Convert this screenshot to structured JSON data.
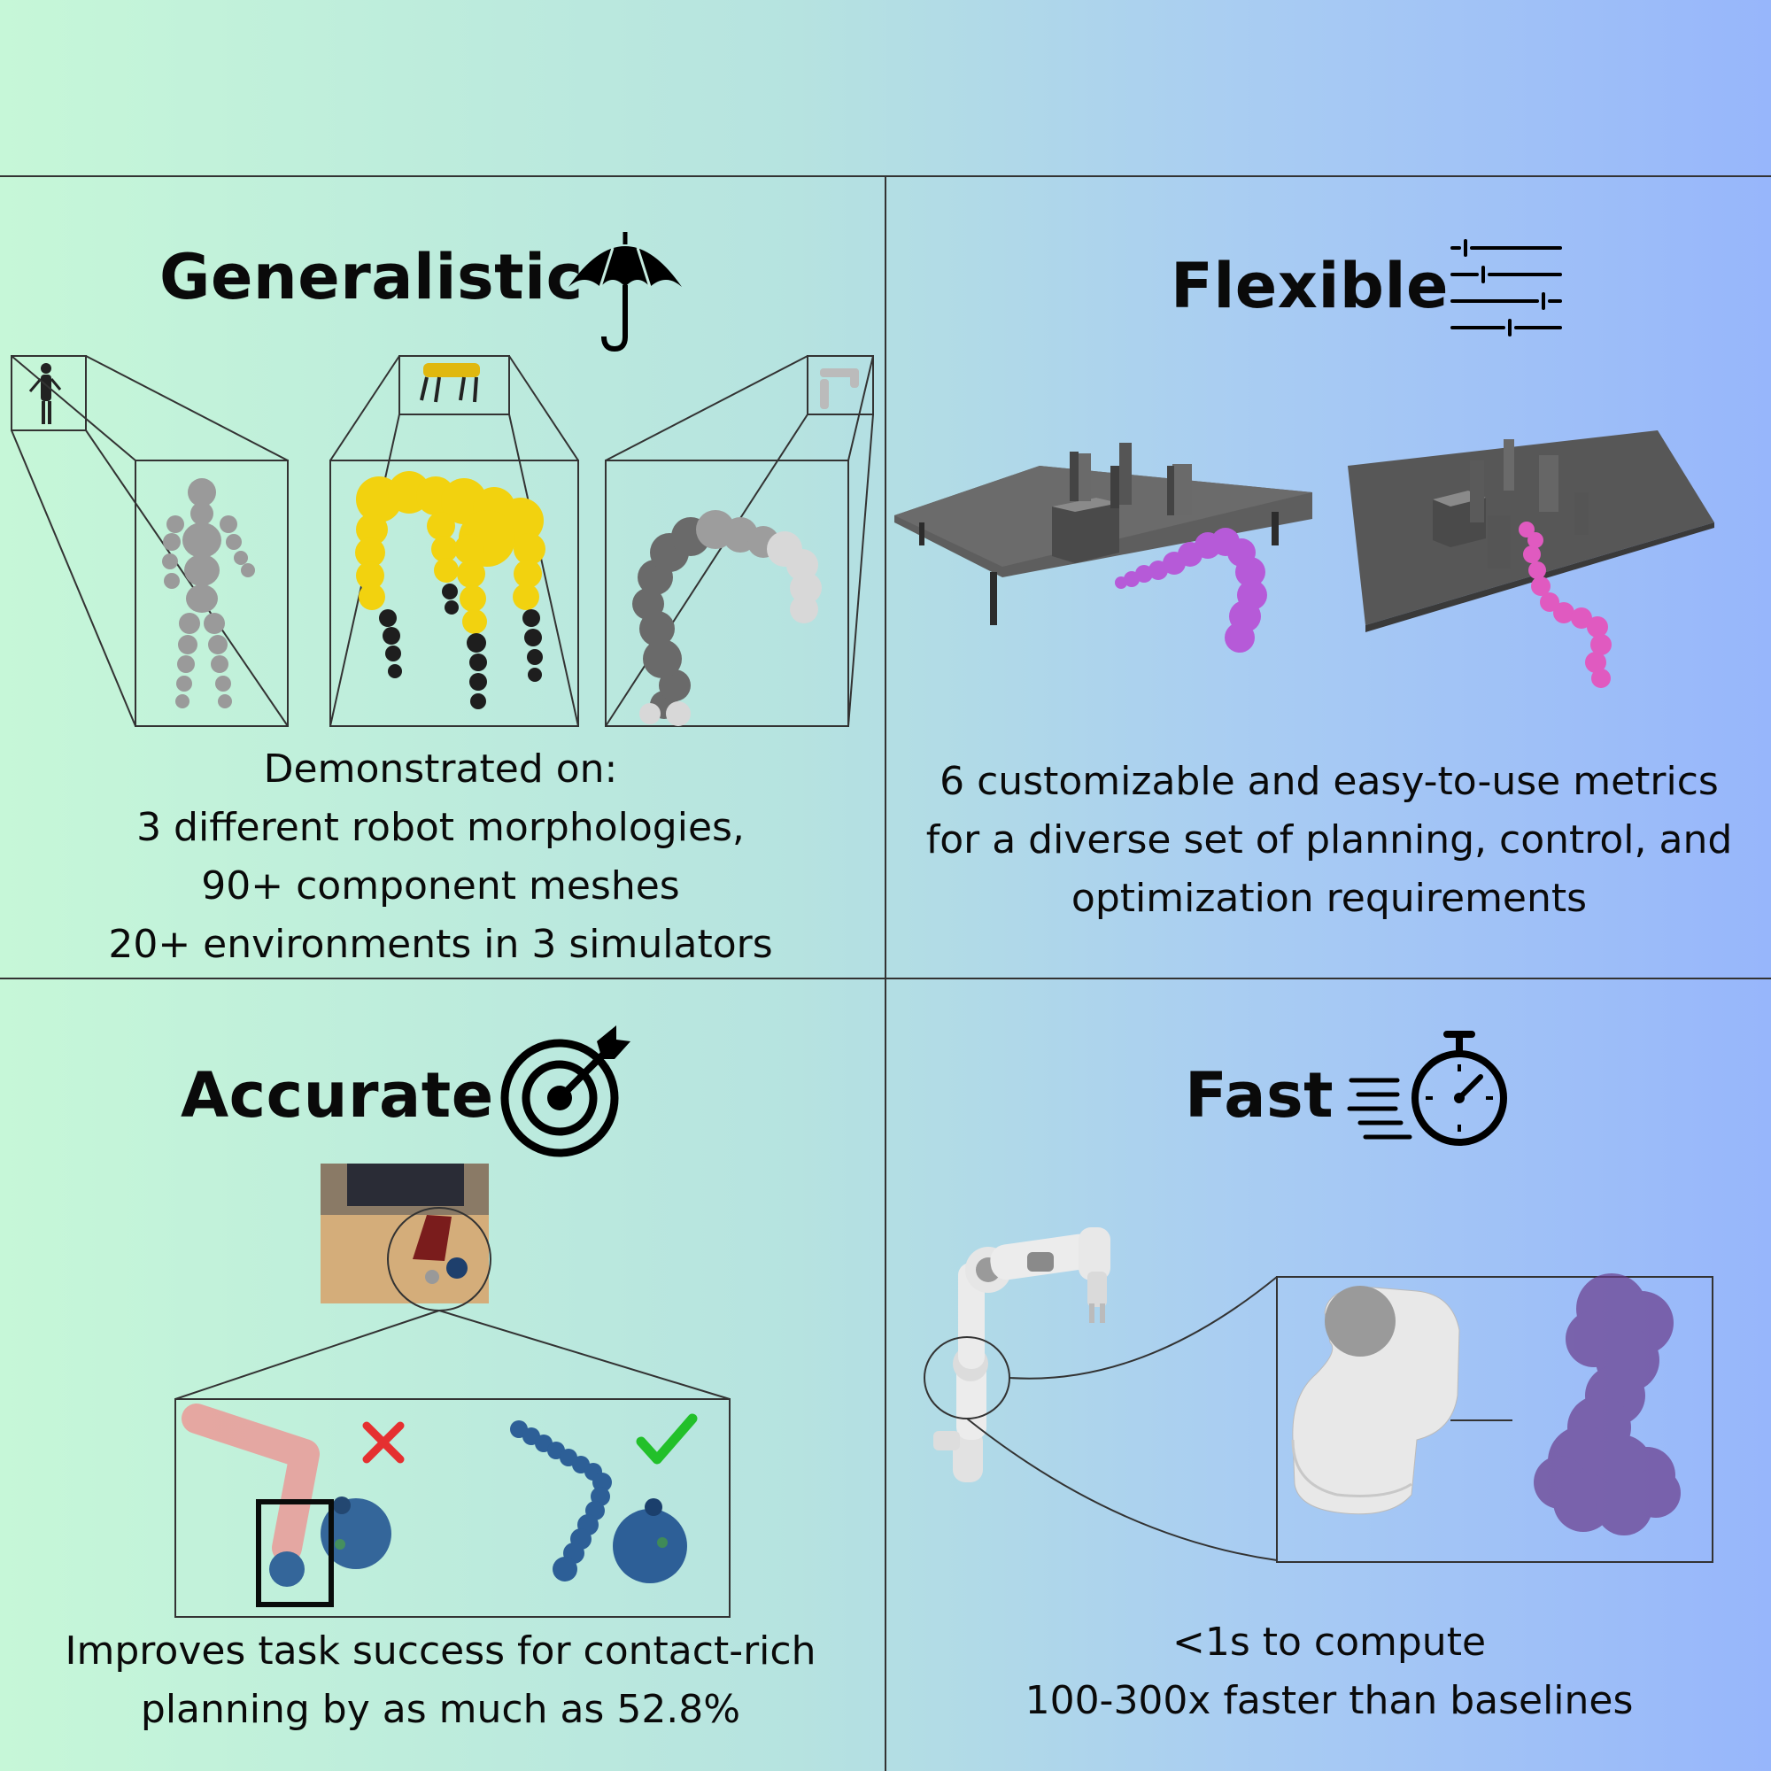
{
  "colors": {
    "gradient_left": "#c6f7d8",
    "gradient_right": "#97b6fb",
    "line": "#333333",
    "humanoid": "#9a9a9a",
    "quadruped_body": "#f2d20f",
    "quadruped_legs": "#1e1e1e",
    "arm_spheres": "#7a7a7a",
    "flexible_purple": "#b65ad8",
    "flexible_pink": "#e05ac0",
    "table_gray": "#5e5e5e",
    "fail_red": "#e53030",
    "success_green": "#22c02a",
    "sphere_blue": "#2d5f97",
    "fast_purple": "#6a3c8c"
  },
  "panels": {
    "generalistic": {
      "title": "Generalistic",
      "icon": "umbrella-icon",
      "caption": [
        "Demonstrated on:",
        "3 different robot morphologies,",
        "90+ component meshes",
        "20+ environments in 3 simulators"
      ]
    },
    "flexible": {
      "title": "Flexible",
      "icon": "sliders-icon",
      "caption": [
        "6 customizable and easy-to-use metrics",
        "for a diverse set of planning, control, and",
        "optimization requirements"
      ]
    },
    "accurate": {
      "title": "Accurate",
      "icon": "target-arrow-icon",
      "caption": [
        "Improves task success for contact-rich",
        "planning by as much as 52.8%"
      ]
    },
    "fast": {
      "title": "Fast",
      "icon": "stopwatch-icon",
      "caption": [
        "<1s to compute",
        "100-300x faster than baselines"
      ]
    }
  }
}
